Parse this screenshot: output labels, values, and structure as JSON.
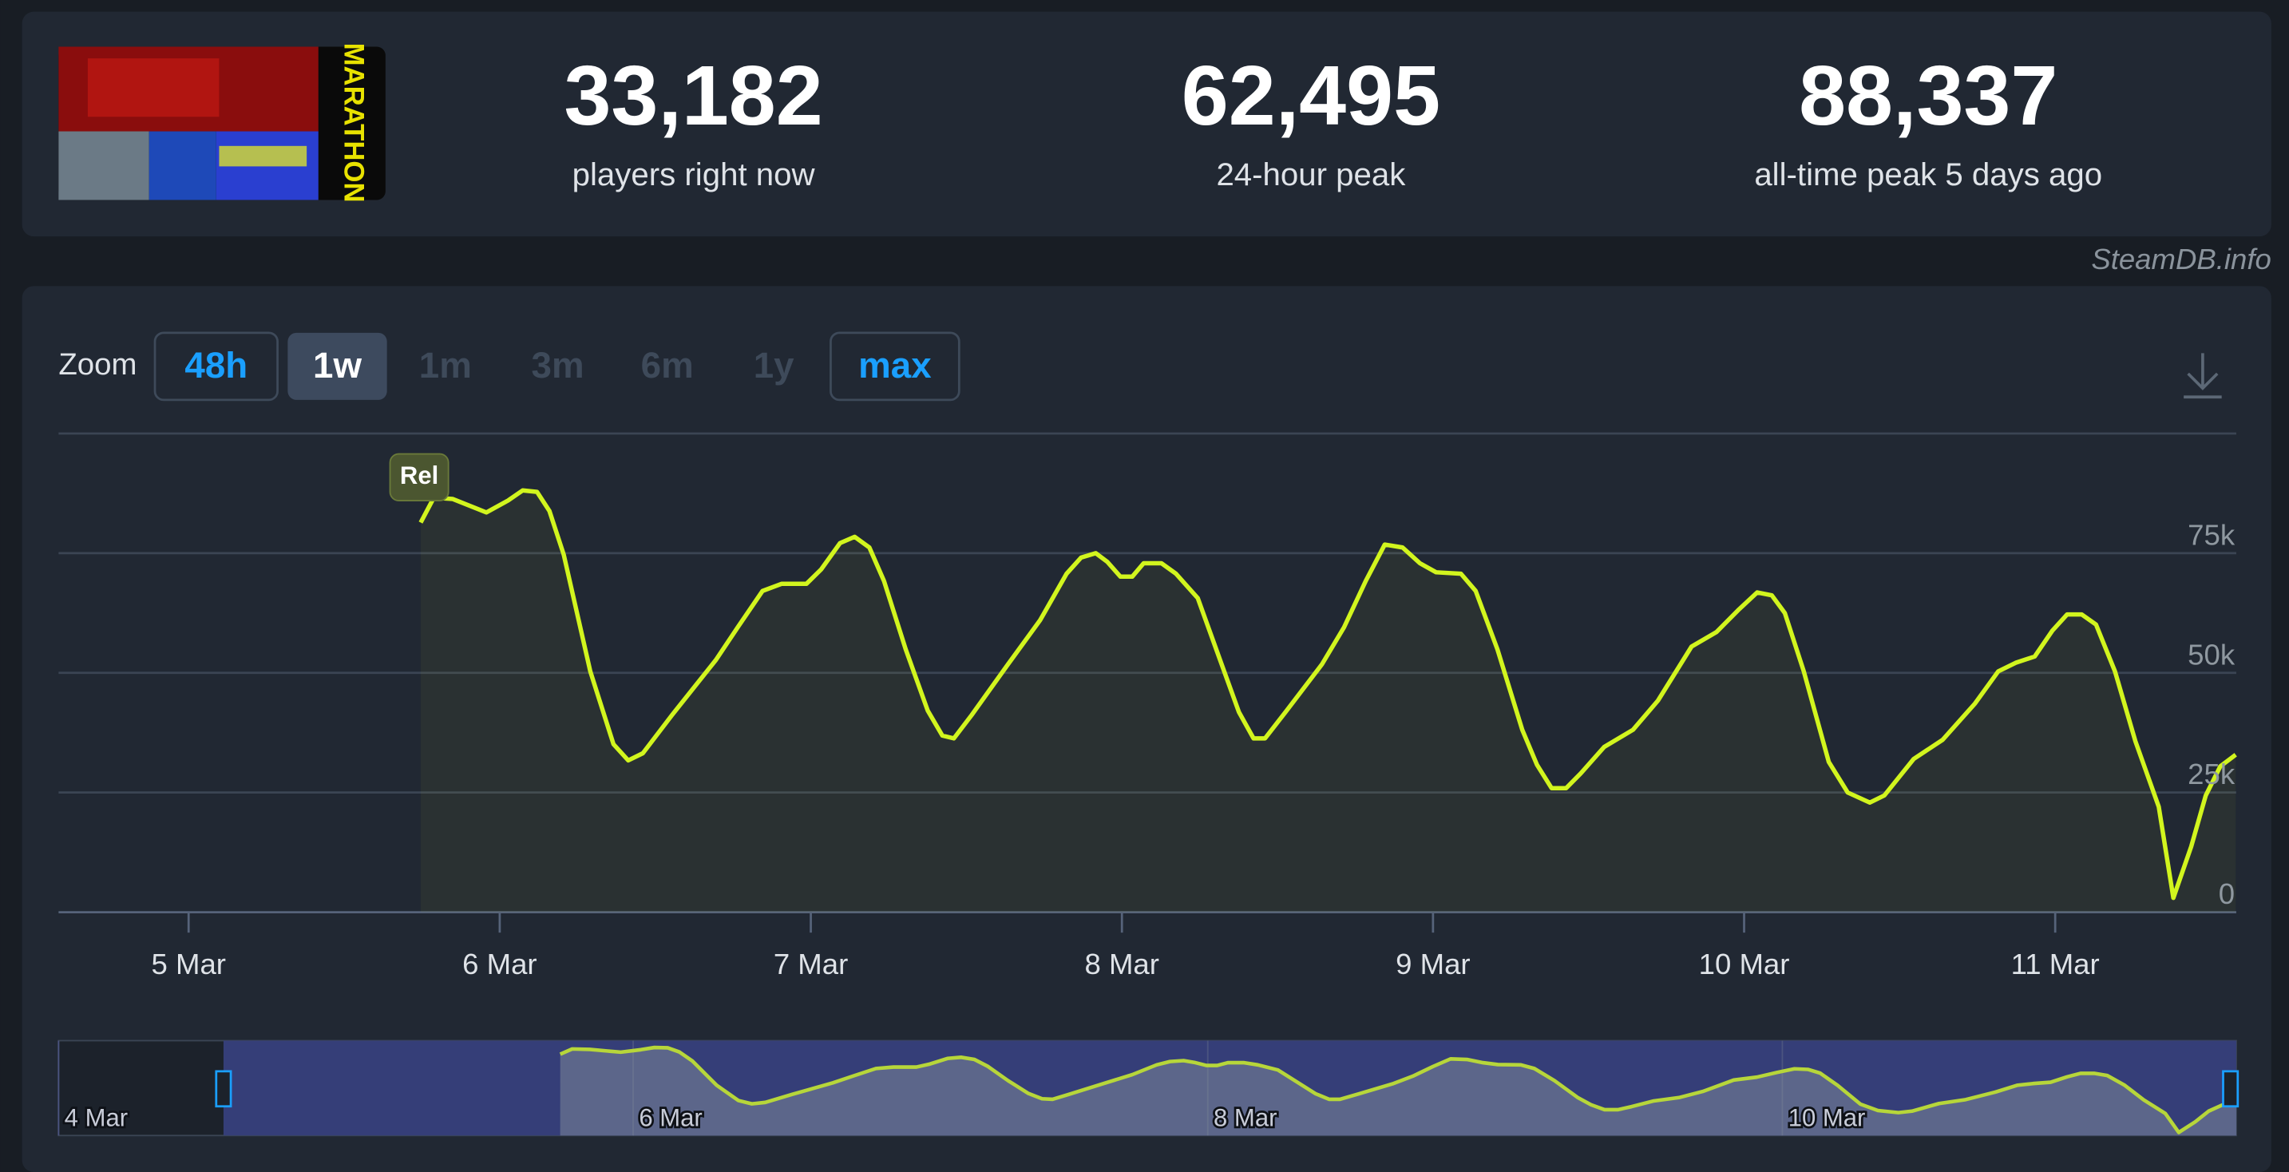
{
  "game": {
    "logo_text": "MARATHON"
  },
  "stats": [
    {
      "value": "33,182",
      "label": "players right now"
    },
    {
      "value": "62,495",
      "label": "24-hour peak"
    },
    {
      "value": "88,337",
      "label": "all-time peak 5 days ago"
    }
  ],
  "watermark": "SteamDB.info",
  "zoom": {
    "label": "Zoom",
    "options": [
      "48h",
      "1w",
      "1m",
      "3m",
      "6m",
      "1y",
      "max"
    ]
  },
  "chart_data": {
    "type": "line",
    "color": "#d2f51e",
    "grid": true,
    "annotations": [
      "Rel"
    ],
    "x": [
      5.746,
      5.788,
      5.849,
      5.957,
      6.027,
      6.074,
      6.12,
      6.16,
      6.206,
      6.291,
      6.366,
      6.413,
      6.46,
      6.554,
      6.695,
      6.765,
      6.845,
      6.906,
      6.986,
      7.033,
      7.094,
      7.141,
      7.188,
      7.235,
      7.305,
      7.376,
      7.423,
      7.46,
      7.517,
      7.634,
      7.737,
      7.822,
      7.869,
      7.916,
      7.953,
      7.995,
      8.033,
      8.07,
      8.127,
      8.174,
      8.244,
      8.329,
      8.376,
      8.423,
      8.46,
      8.526,
      8.643,
      8.714,
      8.784,
      8.845,
      8.902,
      8.958,
      9.01,
      9.09,
      9.137,
      9.207,
      9.287,
      9.334,
      9.381,
      9.428,
      9.475,
      9.55,
      9.643,
      9.723,
      9.831,
      9.911,
      9.981,
      10.042,
      10.089,
      10.131,
      10.192,
      10.272,
      10.333,
      10.404,
      10.451,
      10.545,
      10.638,
      10.742,
      10.817,
      10.873,
      10.934,
      10.991,
      11.038,
      11.085,
      11.131,
      11.192,
      11.258,
      11.333,
      11.38,
      11.437,
      11.484,
      11.531,
      11.58
    ],
    "values": [
      81400,
      86600,
      86300,
      83500,
      86000,
      88100,
      87800,
      83800,
      74700,
      50300,
      35100,
      31700,
      33200,
      41200,
      52700,
      59500,
      67100,
      68600,
      68600,
      71600,
      77100,
      78400,
      76200,
      69200,
      54900,
      42100,
      36900,
      36300,
      41200,
      51800,
      61000,
      70700,
      74100,
      75000,
      73200,
      70100,
      70100,
      72900,
      72900,
      70700,
      65600,
      50300,
      41800,
      36300,
      36300,
      41800,
      51800,
      59500,
      69200,
      76800,
      76200,
      72900,
      71000,
      70700,
      67100,
      54900,
      38100,
      30800,
      25900,
      25900,
      29000,
      34500,
      38100,
      44200,
      55500,
      58500,
      63100,
      66800,
      66200,
      62500,
      50300,
      31400,
      25000,
      22900,
      24400,
      32000,
      36000,
      43600,
      50300,
      52100,
      53400,
      58800,
      62200,
      62200,
      60100,
      50300,
      35700,
      22000,
      3000,
      13700,
      24400,
      30500,
      32900
    ],
    "xlim": [
      4.582,
      11.582
    ],
    "xticks": [
      {
        "value": 5,
        "label": "5 Mar"
      },
      {
        "value": 6,
        "label": "6 Mar"
      },
      {
        "value": 7,
        "label": "7 Mar"
      },
      {
        "value": 8,
        "label": "8 Mar"
      },
      {
        "value": 9,
        "label": "9 Mar"
      },
      {
        "value": 10,
        "label": "10 Mar"
      },
      {
        "value": 11,
        "label": "11 Mar"
      }
    ],
    "ylim": [
      0,
      100000
    ],
    "yticks": [
      0,
      {
        "value": 25000,
        "label": "25k"
      },
      {
        "value": 50000,
        "label": "50k"
      },
      {
        "value": 75000,
        "label": "75k"
      }
    ],
    "navigator": {
      "xlim": [
        4,
        11.58
      ],
      "ylim": [
        0,
        95000
      ],
      "xticks": [
        {
          "value": 4,
          "label": "4 Mar"
        },
        {
          "value": 6,
          "label": "6 Mar"
        },
        {
          "value": 8,
          "label": "8 Mar"
        },
        {
          "value": 10,
          "label": "10 Mar"
        }
      ]
    }
  }
}
